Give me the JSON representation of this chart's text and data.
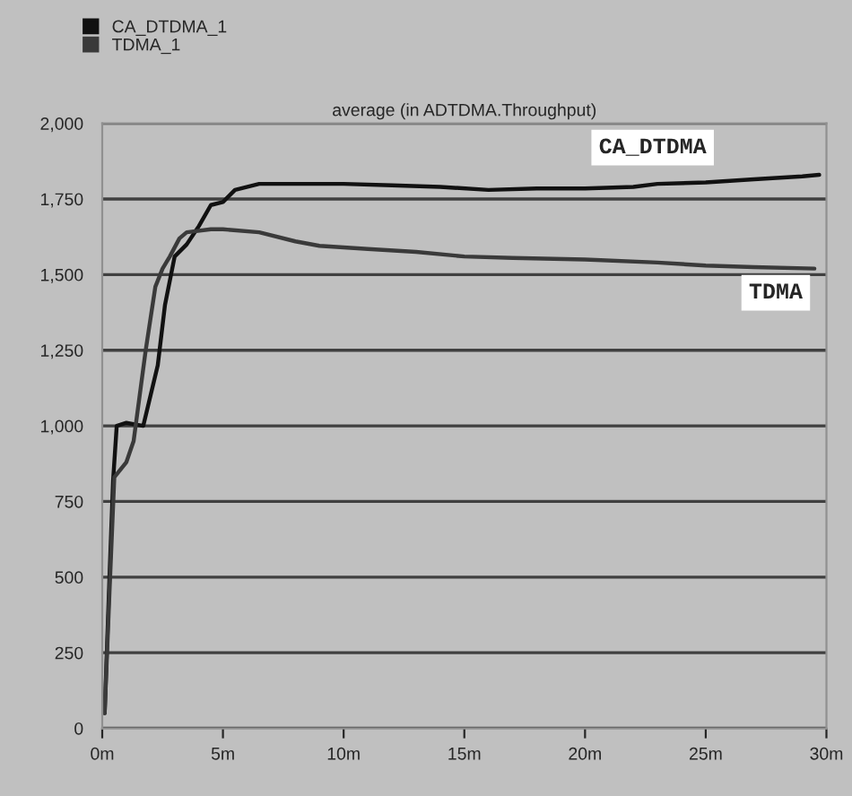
{
  "chart_data": {
    "type": "line",
    "title": "average (in ADTDMA.Throughput)",
    "series": [
      {
        "name": "CA_DTDMA_1",
        "color": "#111111",
        "x": [
          0.1,
          0.3,
          0.45,
          0.6,
          1.0,
          1.7,
          2.0,
          2.3,
          2.6,
          3.0,
          3.5,
          4.0,
          4.5,
          5.0,
          5.5,
          6.5,
          8,
          10,
          12,
          14,
          16,
          18,
          20,
          22,
          23,
          25,
          27,
          29,
          29.7
        ],
        "values": [
          50,
          500,
          820,
          1000,
          1010,
          1000,
          1100,
          1200,
          1400,
          1560,
          1600,
          1660,
          1730,
          1740,
          1780,
          1800,
          1800,
          1800,
          1795,
          1790,
          1780,
          1785,
          1785,
          1790,
          1800,
          1805,
          1815,
          1825,
          1830
        ]
      },
      {
        "name": "TDMA_1",
        "color": "#3a3a3a",
        "x": [
          0.1,
          0.3,
          0.5,
          1.0,
          1.3,
          1.8,
          2.2,
          2.5,
          2.8,
          3.2,
          3.5,
          4.5,
          5.0,
          6.5,
          8,
          9,
          11,
          13,
          15,
          17,
          20,
          23,
          25,
          27,
          29.5
        ],
        "values": [
          50,
          450,
          830,
          880,
          950,
          1250,
          1460,
          1520,
          1560,
          1620,
          1640,
          1650,
          1650,
          1640,
          1610,
          1595,
          1585,
          1575,
          1560,
          1555,
          1550,
          1540,
          1530,
          1525,
          1520
        ]
      }
    ],
    "xlim": [
      0,
      30
    ],
    "xticks": [
      {
        "value": 0,
        "label": "0m"
      },
      {
        "value": 5,
        "label": "5m"
      },
      {
        "value": 10,
        "label": "10m"
      },
      {
        "value": 15,
        "label": "15m"
      },
      {
        "value": 20,
        "label": "20m"
      },
      {
        "value": 25,
        "label": "25m"
      },
      {
        "value": 30,
        "label": "30m"
      }
    ],
    "ylim": [
      0,
      2000
    ],
    "yticks": [
      {
        "value": 0,
        "label": "0"
      },
      {
        "value": 250,
        "label": "250"
      },
      {
        "value": 500,
        "label": "500"
      },
      {
        "value": 750,
        "label": "750"
      },
      {
        "value": 1000,
        "label": "1,000"
      },
      {
        "value": 1250,
        "label": "1,250"
      },
      {
        "value": 1500,
        "label": "1,500"
      },
      {
        "value": 1750,
        "label": "1,750"
      },
      {
        "value": 2000,
        "label": "2,000"
      }
    ],
    "grid": "y",
    "legend": "top left",
    "line_style": "solid",
    "annotations": [
      "CA_DTDMA",
      "TDMA"
    ]
  }
}
